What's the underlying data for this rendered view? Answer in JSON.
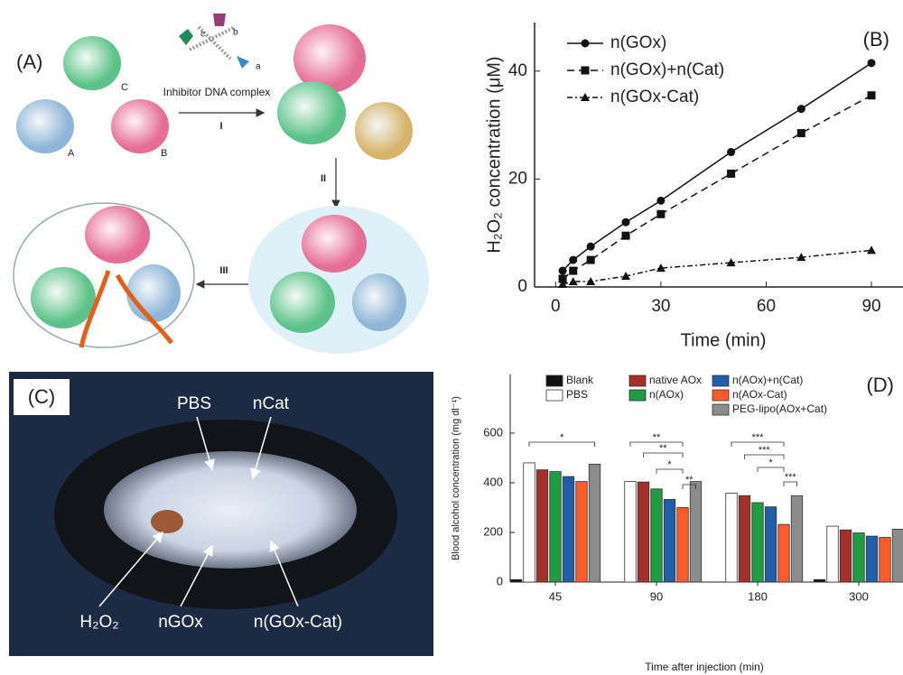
{
  "panel_a": {
    "label": "(A)",
    "proteins": [
      "C",
      "A",
      "B"
    ],
    "dna_strands": [
      "c",
      "b",
      "a"
    ],
    "step_label": "Inhibitor DNA complex",
    "steps": [
      "I",
      "II",
      "III"
    ]
  },
  "panel_c": {
    "label": "(C)",
    "sites": [
      "PBS",
      "nCat",
      "H₂O₂",
      "nGOx",
      "n(GOx-Cat)"
    ]
  },
  "chart_data": [
    {
      "type": "line",
      "label": "(B)",
      "x_label": "Time (min)",
      "y_label": "H₂O₂ concentration (μM)",
      "xlim": [
        -6,
        99
      ],
      "xticks": [
        0,
        30,
        60,
        90
      ],
      "ylim": [
        0,
        49
      ],
      "yticks": [
        0,
        20,
        40
      ],
      "legend": "upper left",
      "series": [
        {
          "name": "n(GOx)",
          "color": "#111111",
          "marker": "circle",
          "dash": "solid",
          "x": [
            2,
            5,
            10,
            20,
            30,
            50,
            70,
            90
          ],
          "values": [
            3,
            5,
            7.5,
            12,
            16,
            25,
            33,
            41.5
          ]
        },
        {
          "name": "n(GOx)+n(Cat)",
          "color": "#111111",
          "marker": "square",
          "dash": "dashed",
          "x": [
            2,
            5,
            10,
            20,
            30,
            50,
            70,
            90
          ],
          "values": [
            1.5,
            3,
            5,
            9.5,
            13.5,
            21,
            28.5,
            35.5
          ]
        },
        {
          "name": "n(GOx-Cat)",
          "color": "#111111",
          "marker": "triangle",
          "dash": "dashdot",
          "x": [
            2,
            5,
            10,
            20,
            30,
            50,
            70,
            90
          ],
          "values": [
            0.5,
            1,
            1,
            2,
            3.5,
            4.5,
            5.5,
            6.8
          ]
        }
      ]
    },
    {
      "type": "bar",
      "label": "(D)",
      "x_label": "Time after injection (min)",
      "y_label": "Blood alcohol concentration (mg dl⁻¹)",
      "categories": [
        "45",
        "90",
        "180",
        "300"
      ],
      "ylim": [
        0,
        836
      ],
      "yticks": [
        0,
        200,
        400,
        600
      ],
      "series": [
        {
          "name": "Blank",
          "color": "#111111",
          "values": [
            10,
            null,
            null,
            10
          ]
        },
        {
          "name": "PBS",
          "color": "#ffffff",
          "values": [
            480,
            405,
            358,
            225
          ]
        },
        {
          "name": "native AOx",
          "color": "#a3302a",
          "values": [
            452,
            403,
            348,
            210
          ]
        },
        {
          "name": "n(AOx)",
          "color": "#1f9a45",
          "values": [
            445,
            375,
            320,
            198
          ]
        },
        {
          "name": "n(AOx)+n(Cat)",
          "color": "#1f5fa8",
          "values": [
            425,
            333,
            303,
            185
          ]
        },
        {
          "name": "n(AOx-Cat)",
          "color": "#ff5a2a",
          "values": [
            405,
            300,
            232,
            180
          ]
        },
        {
          "name": "PEG-lipo(AOx+Cat)",
          "color": "#8c8c8c",
          "values": [
            475,
            405,
            348,
            213
          ]
        }
      ],
      "significance": [
        [
          "*"
        ],
        [
          "**",
          "**",
          "*",
          "**"
        ],
        [
          "***",
          "***",
          "*",
          "***"
        ]
      ]
    }
  ]
}
